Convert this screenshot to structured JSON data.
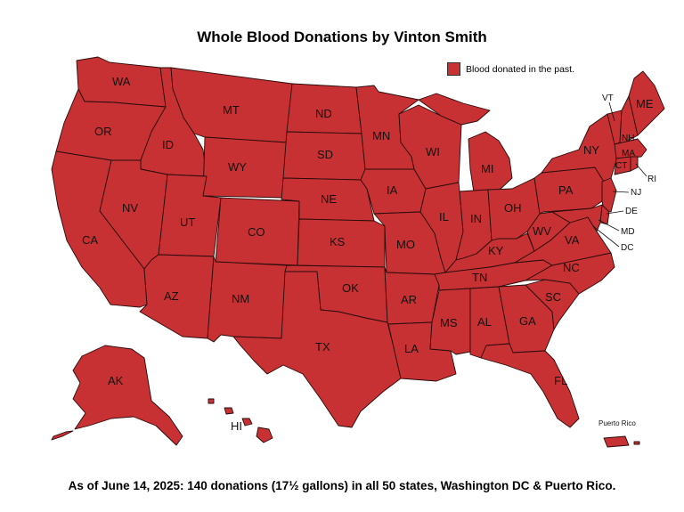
{
  "title": "Whole Blood Donations by Vinton Smith",
  "legend": {
    "label": "Blood donated in the past.",
    "color": "#c73133"
  },
  "footer": "As of June 14, 2025: 140 donations (17½ gallons) in all 50 states, Washington DC & Puerto Rico.",
  "map": {
    "fill_color": "#c73133",
    "border_color": "#2a0b0b",
    "states": [
      {
        "code": "WA",
        "label": "WA"
      },
      {
        "code": "OR",
        "label": "OR"
      },
      {
        "code": "CA",
        "label": "CA"
      },
      {
        "code": "ID",
        "label": "ID"
      },
      {
        "code": "NV",
        "label": "NV"
      },
      {
        "code": "MT",
        "label": "MT"
      },
      {
        "code": "WY",
        "label": "WY"
      },
      {
        "code": "UT",
        "label": "UT"
      },
      {
        "code": "AZ",
        "label": "AZ"
      },
      {
        "code": "CO",
        "label": "CO"
      },
      {
        "code": "NM",
        "label": "NM"
      },
      {
        "code": "ND",
        "label": "ND"
      },
      {
        "code": "SD",
        "label": "SD"
      },
      {
        "code": "NE",
        "label": "NE"
      },
      {
        "code": "KS",
        "label": "KS"
      },
      {
        "code": "OK",
        "label": "OK"
      },
      {
        "code": "TX",
        "label": "TX"
      },
      {
        "code": "MN",
        "label": "MN"
      },
      {
        "code": "IA",
        "label": "IA"
      },
      {
        "code": "MO",
        "label": "MO"
      },
      {
        "code": "AR",
        "label": "AR"
      },
      {
        "code": "LA",
        "label": "LA"
      },
      {
        "code": "WI",
        "label": "WI"
      },
      {
        "code": "IL",
        "label": "IL"
      },
      {
        "code": "MI",
        "label": "MI"
      },
      {
        "code": "IN",
        "label": "IN"
      },
      {
        "code": "OH",
        "label": "OH"
      },
      {
        "code": "KY",
        "label": "KY"
      },
      {
        "code": "TN",
        "label": "TN"
      },
      {
        "code": "MS",
        "label": "MS"
      },
      {
        "code": "AL",
        "label": "AL"
      },
      {
        "code": "GA",
        "label": "GA"
      },
      {
        "code": "FL",
        "label": "FL"
      },
      {
        "code": "SC",
        "label": "SC"
      },
      {
        "code": "NC",
        "label": "NC"
      },
      {
        "code": "VA",
        "label": "VA"
      },
      {
        "code": "WV",
        "label": "WV"
      },
      {
        "code": "PA",
        "label": "PA"
      },
      {
        "code": "NY",
        "label": "NY"
      },
      {
        "code": "VT",
        "label": "VT"
      },
      {
        "code": "NH",
        "label": "NH"
      },
      {
        "code": "ME",
        "label": "ME"
      },
      {
        "code": "MA",
        "label": "MA"
      },
      {
        "code": "CT",
        "label": "CT"
      },
      {
        "code": "RI",
        "label": "RI"
      },
      {
        "code": "NJ",
        "label": "NJ"
      },
      {
        "code": "DE",
        "label": "DE"
      },
      {
        "code": "MD",
        "label": "MD"
      },
      {
        "code": "DC",
        "label": "DC"
      },
      {
        "code": "AK",
        "label": "AK"
      },
      {
        "code": "HI",
        "label": "HI"
      },
      {
        "code": "PR",
        "label": "Puerto Rico"
      }
    ]
  }
}
